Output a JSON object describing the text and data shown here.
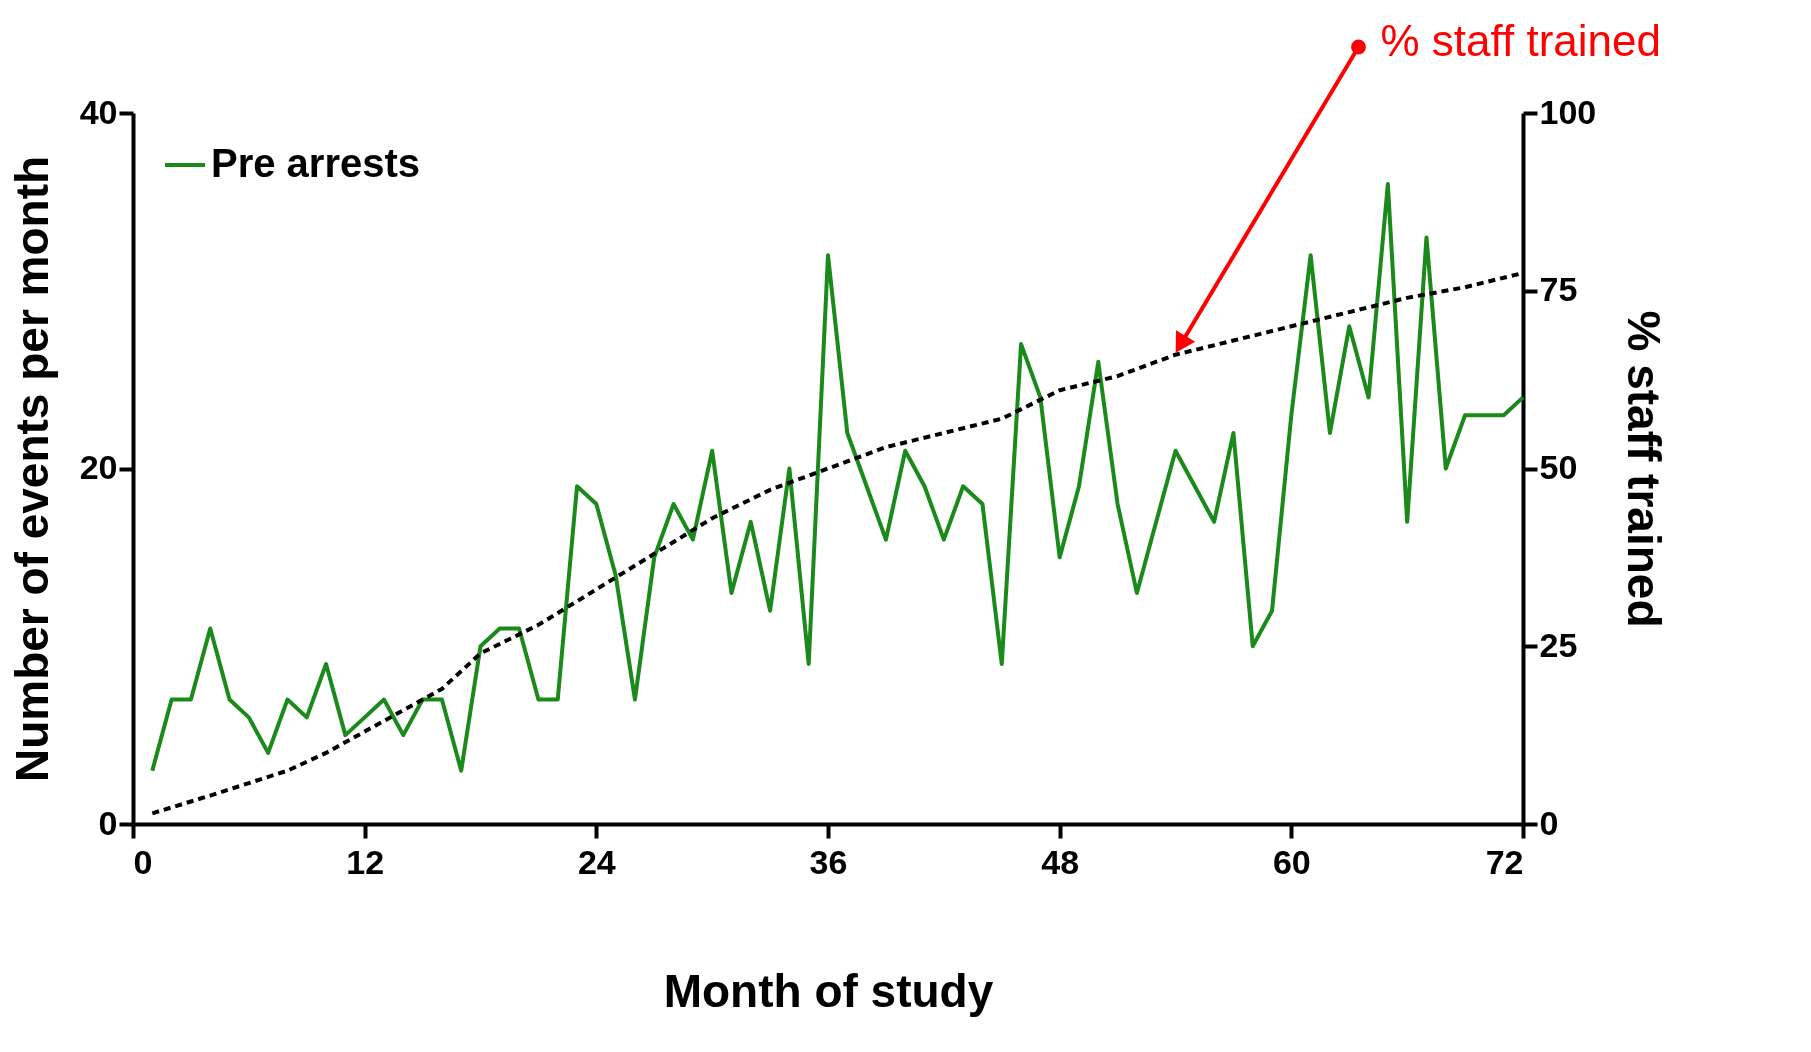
{
  "chart_data": {
    "type": "line",
    "xlabel": "Month of study",
    "ylabel": "Number of events per month",
    "y2label": "% staff trained",
    "xlim": [
      0,
      72
    ],
    "xticks": [
      0,
      12,
      24,
      36,
      48,
      60,
      72
    ],
    "ylim": [
      0,
      40
    ],
    "yticks": [
      0,
      20,
      40
    ],
    "y2lim": [
      0,
      100
    ],
    "y2ticks": [
      0,
      25,
      50,
      75,
      100
    ],
    "legend": "top left",
    "series": [
      {
        "name": "Pre arrests",
        "color": "#1a8a1a",
        "x": [
          1,
          2,
          3,
          4,
          5,
          6,
          7,
          8,
          9,
          10,
          11,
          12,
          13,
          14,
          15,
          16,
          17,
          18,
          19,
          20,
          21,
          22,
          23,
          24,
          25,
          26,
          27,
          28,
          29,
          30,
          31,
          32,
          33,
          34,
          35,
          36,
          37,
          38,
          39,
          40,
          41,
          42,
          43,
          44,
          45,
          46,
          47,
          48,
          49,
          50,
          51,
          52,
          53,
          54,
          55,
          56,
          57,
          58,
          59,
          60,
          61,
          62,
          63,
          64,
          65,
          66,
          67,
          68,
          69,
          70,
          71,
          72
        ],
        "values": [
          3,
          7,
          7,
          11,
          7,
          6,
          4,
          7,
          6,
          9,
          5,
          6,
          7,
          5,
          7,
          7,
          3,
          10,
          11,
          11,
          7,
          7,
          19,
          18,
          14,
          7,
          15,
          18,
          16,
          21,
          13,
          17,
          12,
          20,
          9,
          32,
          22,
          19,
          16,
          21,
          19,
          16,
          19,
          18,
          9,
          27,
          24,
          15,
          19,
          26,
          18,
          13,
          17,
          21,
          19,
          17,
          22,
          10,
          12,
          23,
          32,
          22,
          28,
          24,
          36,
          17,
          33,
          20,
          23,
          23,
          23,
          24
        ]
      },
      {
        "color": "#000000",
        "axis": "y2",
        "line_style": "dashed",
        "x": [
          1,
          4,
          8,
          10,
          12,
          16,
          18,
          21,
          24,
          27,
          30,
          33,
          36,
          39,
          42,
          45,
          48,
          51,
          54,
          57,
          60,
          63,
          66,
          69,
          72
        ],
        "values": [
          1.5,
          4,
          7.5,
          10,
          13,
          19,
          24,
          28,
          33,
          38,
          43,
          47,
          50,
          53,
          55,
          57,
          61,
          63,
          66,
          68,
          70,
          72,
          74,
          75.5,
          77.5
        ]
      }
    ],
    "annotations": [
      "% staff trained"
    ]
  }
}
